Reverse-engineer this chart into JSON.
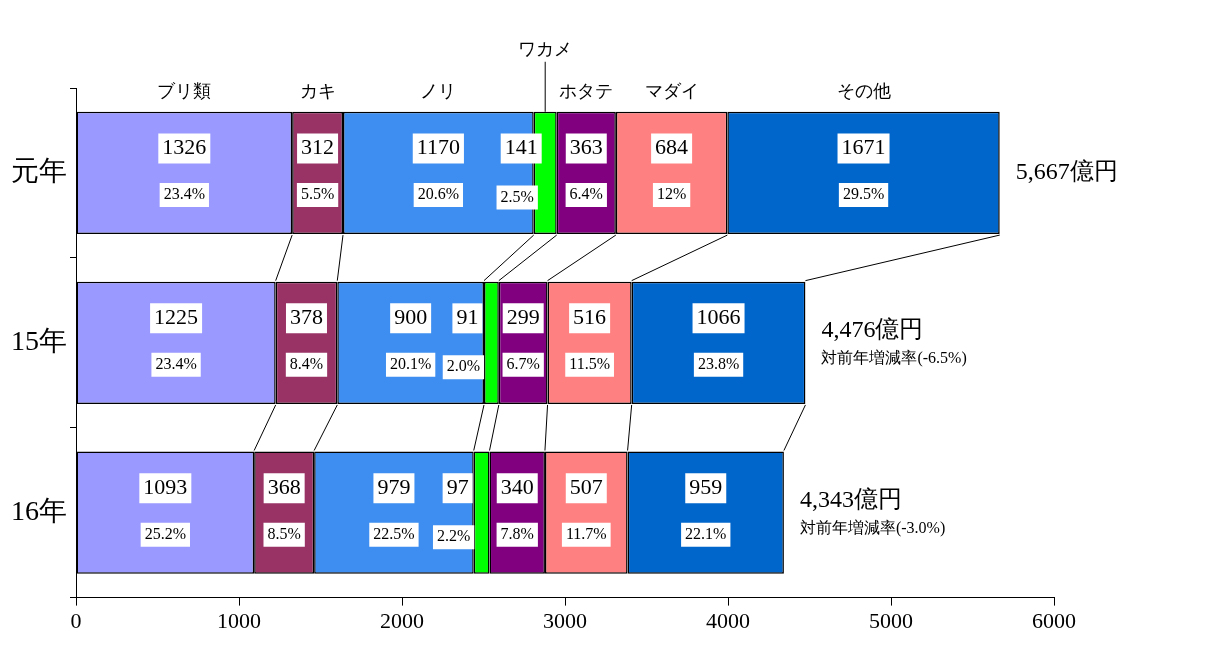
{
  "chart_data": {
    "type": "bar",
    "orientation": "horizontal",
    "stacked": true,
    "categories": [
      "元年",
      "15年",
      "16年"
    ],
    "series": [
      {
        "name": "ブリ類",
        "color": "#9999ff",
        "values": [
          1326,
          1225,
          1093
        ]
      },
      {
        "name": "カキ",
        "color": "#993366",
        "values": [
          312,
          378,
          368
        ]
      },
      {
        "name": "ノリ",
        "color": "#3d8ef0",
        "values": [
          1170,
          900,
          979
        ]
      },
      {
        "name": "ワカメ",
        "color": "#00ff00",
        "values": [
          141,
          91,
          97
        ]
      },
      {
        "name": "ホタテ",
        "color": "#800080",
        "values": [
          363,
          299,
          340
        ]
      },
      {
        "name": "マダイ",
        "color": "#ff8080",
        "values": [
          684,
          516,
          507
        ]
      },
      {
        "name": "その他",
        "color": "#0066cc",
        "values": [
          1671,
          1066,
          959
        ]
      }
    ],
    "data_labels": true,
    "totals": [
      "5,667億円",
      "4,476億円",
      "4,343億円"
    ],
    "annotations": [
      "23.4%",
      "5.5%",
      "20.6%",
      "2.5%",
      "6.4%",
      "12%",
      "29.5%",
      "23.4%",
      "8.4%",
      "20.1%",
      "2.0%",
      "6.7%",
      "11.5%",
      "23.8%",
      "25.2%",
      "8.5%",
      "22.5%",
      "2.2%",
      "7.8%",
      "11.7%",
      "22.1%",
      "対前年増減率(-6.5%)",
      "対前年増減率(-3.0%)"
    ],
    "xlim": [
      0,
      6000
    ],
    "xticks": [
      0,
      1000,
      2000,
      3000,
      4000,
      5000,
      6000
    ],
    "grid": false,
    "legend": false
  }
}
